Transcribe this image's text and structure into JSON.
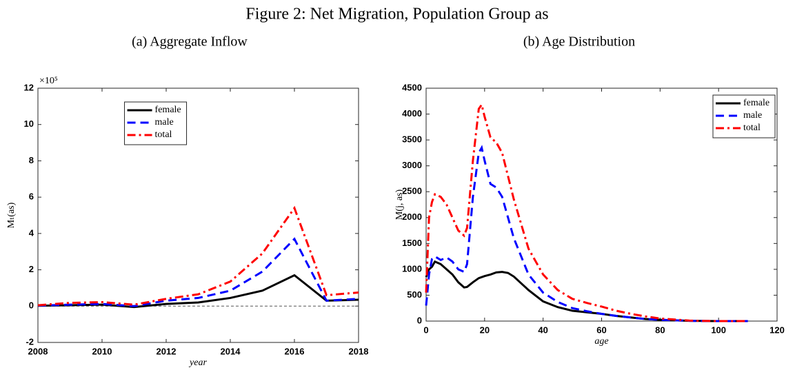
{
  "title": "Figure 2: Net Migration, Population Group as",
  "chart_data": [
    {
      "type": "line",
      "title": "(a) Aggregate Inflow",
      "x_label": "year",
      "y_label": "Mₜ(as)",
      "y_multiplier": "×10⁵",
      "x": [
        2008,
        2009,
        2010,
        2011,
        2012,
        2013,
        2014,
        2015,
        2016,
        2017,
        2018
      ],
      "series": [
        {
          "name": "female",
          "color": "#000000",
          "style": "solid",
          "values": [
            0.02,
            0.05,
            0.08,
            -0.05,
            0.12,
            0.2,
            0.45,
            0.85,
            1.7,
            0.3,
            0.35
          ]
        },
        {
          "name": "male",
          "color": "#0000ff",
          "style": "dashed",
          "values": [
            0.03,
            0.08,
            0.12,
            0.0,
            0.3,
            0.45,
            0.85,
            1.9,
            3.7,
            0.3,
            0.4
          ]
        },
        {
          "name": "total",
          "color": "#ff0000",
          "style": "dashdot",
          "values": [
            0.05,
            0.18,
            0.22,
            0.08,
            0.4,
            0.65,
            1.35,
            2.9,
            5.4,
            0.6,
            0.75
          ]
        }
      ],
      "reference_line": 0,
      "xlim": [
        2008,
        2018
      ],
      "xticks": [
        2008,
        2010,
        2012,
        2014,
        2016,
        2018
      ],
      "ylim": [
        -2,
        12
      ],
      "yticks": [
        -2,
        0,
        2,
        4,
        6,
        8,
        10,
        12
      ],
      "legend": "upper center",
      "grid": false
    },
    {
      "type": "line",
      "title": "(b) Age Distribution",
      "x_label": "age",
      "y_label": "M(j, as)",
      "x": [
        0,
        1,
        2,
        3,
        5,
        7,
        9,
        11,
        13,
        14,
        16,
        18,
        19,
        20,
        22,
        24,
        26,
        28,
        30,
        35,
        40,
        45,
        50,
        55,
        60,
        65,
        70,
        75,
        80,
        85,
        90,
        95,
        100,
        105,
        110
      ],
      "series": [
        {
          "name": "female",
          "color": "#000000",
          "style": "solid",
          "values": [
            850,
            1000,
            1050,
            1150,
            1100,
            1000,
            900,
            750,
            650,
            660,
            750,
            830,
            850,
            870,
            900,
            940,
            950,
            930,
            860,
            600,
            380,
            270,
            200,
            170,
            140,
            100,
            70,
            40,
            25,
            15,
            5,
            2,
            0,
            0,
            0
          ]
        },
        {
          "name": "male",
          "color": "#0000ff",
          "style": "dashed",
          "values": [
            300,
            900,
            1200,
            1250,
            1180,
            1230,
            1150,
            1000,
            950,
            1100,
            2400,
            3250,
            3350,
            3100,
            2650,
            2580,
            2400,
            2000,
            1600,
            900,
            550,
            370,
            250,
            190,
            140,
            100,
            70,
            40,
            25,
            15,
            5,
            2,
            0,
            0,
            0
          ]
        },
        {
          "name": "total",
          "color": "#ff0000",
          "style": "dashdot",
          "values": [
            550,
            2000,
            2300,
            2450,
            2400,
            2250,
            2000,
            1750,
            1650,
            1800,
            3100,
            4100,
            4180,
            3950,
            3550,
            3450,
            3250,
            2800,
            2350,
            1400,
            900,
            600,
            430,
            350,
            280,
            200,
            140,
            90,
            50,
            30,
            10,
            3,
            0,
            0,
            0
          ]
        }
      ],
      "xlim": [
        0,
        120
      ],
      "xticks": [
        0,
        20,
        40,
        60,
        80,
        100,
        120
      ],
      "ylim": [
        0,
        4500
      ],
      "yticks": [
        0,
        500,
        1000,
        1500,
        2000,
        2500,
        3000,
        3500,
        4000,
        4500
      ],
      "legend": "upper right",
      "grid": false
    }
  ]
}
